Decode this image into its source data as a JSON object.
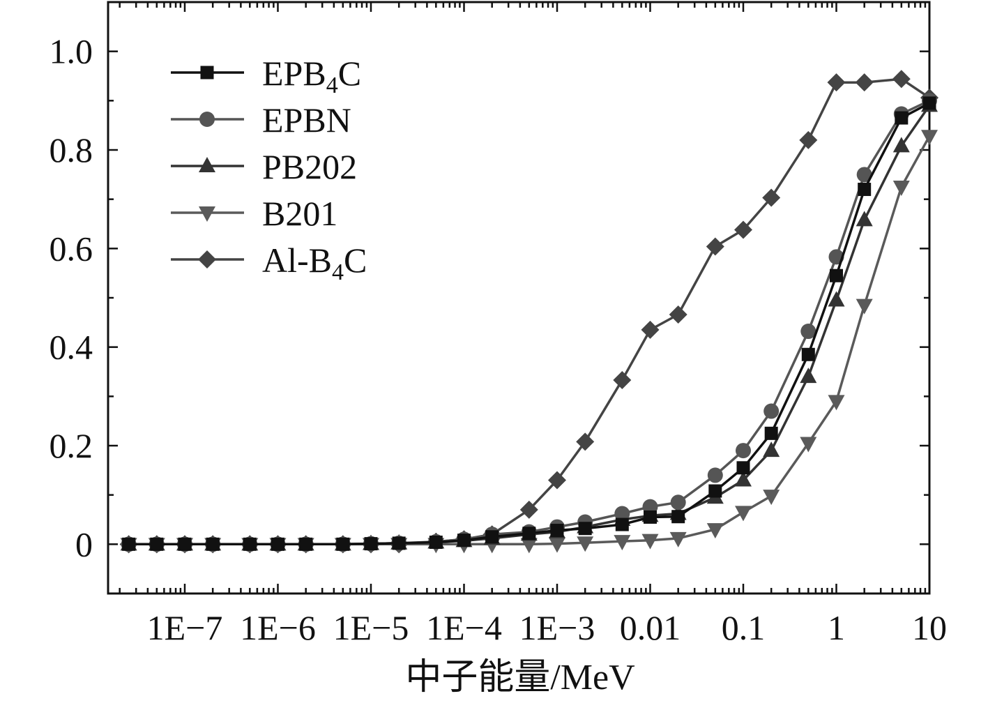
{
  "chart_data": {
    "type": "line",
    "title": "",
    "xlabel": "中子能量/MeV",
    "ylabel": "",
    "xscale": "log",
    "xlim": [
      1.5e-08,
      10
    ],
    "ylim": [
      -0.1,
      1.1
    ],
    "x_ticks": [
      1e-07,
      1e-06,
      1e-05,
      0.0001,
      0.001,
      0.01,
      0.1,
      1,
      10
    ],
    "x_tick_labels": [
      "1E−7",
      "1E−6",
      "1E−5",
      "1E−4",
      "1E−3",
      "0.01",
      "0.1",
      "1",
      "10"
    ],
    "y_ticks": [
      0,
      0.2,
      0.4,
      0.6,
      0.8,
      1.0
    ],
    "y_tick_labels": [
      "0",
      "0.2",
      "0.4",
      "0.6",
      "0.8",
      "1.0"
    ],
    "grid": false,
    "legend_position": "top-left",
    "x": [
      2.5e-08,
      5e-08,
      1e-07,
      2e-07,
      5e-07,
      1e-06,
      2e-06,
      5e-06,
      1e-05,
      2e-05,
      5e-05,
      0.0001,
      0.0002,
      0.0005,
      0.001,
      0.002,
      0.005,
      0.01,
      0.02,
      0.05,
      0.1,
      0.2,
      0.5,
      1,
      2,
      5,
      10
    ],
    "series": [
      {
        "name": "EPB₄C",
        "label_main": "EPB",
        "label_sub": "4",
        "label_tail": "C",
        "marker": "square",
        "color": "#111111",
        "values": [
          0,
          0,
          0,
          0,
          0,
          0,
          0,
          0,
          0.001,
          0.002,
          0.004,
          0.008,
          0.015,
          0.022,
          0.028,
          0.032,
          0.04,
          0.055,
          0.056,
          0.108,
          0.155,
          0.225,
          0.385,
          0.545,
          0.72,
          0.865,
          0.895
        ]
      },
      {
        "name": "EPBN",
        "label_main": "EPBN",
        "label_sub": "",
        "label_tail": "",
        "marker": "circle",
        "color": "#555555",
        "values": [
          0,
          0,
          0,
          0,
          0,
          0,
          0,
          0,
          0.001,
          0.002,
          0.005,
          0.01,
          0.02,
          0.025,
          0.035,
          0.045,
          0.062,
          0.076,
          0.085,
          0.14,
          0.19,
          0.27,
          0.432,
          0.583,
          0.75,
          0.873,
          0.9
        ]
      },
      {
        "name": "PB202",
        "label_main": "PB202",
        "label_sub": "",
        "label_tail": "",
        "marker": "triangle-up",
        "color": "#333333",
        "values": [
          0,
          0,
          0,
          0,
          0,
          0,
          0,
          0,
          0.001,
          0.002,
          0.004,
          0.007,
          0.012,
          0.02,
          0.025,
          0.035,
          0.05,
          0.058,
          0.062,
          0.095,
          0.13,
          0.19,
          0.34,
          0.495,
          0.658,
          0.808,
          0.89
        ]
      },
      {
        "name": "B201",
        "label_main": "B201",
        "label_sub": "",
        "label_tail": "",
        "marker": "triangle-down",
        "color": "#5a5a5a",
        "values": [
          0,
          0,
          0,
          0,
          0,
          0,
          0,
          0,
          0,
          0,
          0,
          0,
          0,
          0,
          0.001,
          0.003,
          0.006,
          0.008,
          0.012,
          0.03,
          0.065,
          0.098,
          0.205,
          0.29,
          0.485,
          0.725,
          0.828
        ]
      },
      {
        "name": "Al-B₄C",
        "label_main": "Al-B",
        "label_sub": "4",
        "label_tail": "C",
        "marker": "diamond",
        "color": "#444444",
        "values": [
          0,
          0,
          0,
          0,
          0,
          0,
          0,
          0,
          0,
          0,
          0.005,
          0.01,
          0.02,
          0.07,
          0.13,
          0.208,
          0.333,
          0.435,
          0.466,
          0.604,
          0.638,
          0.703,
          0.82,
          0.937,
          0.937,
          0.944,
          0.906
        ]
      }
    ]
  }
}
